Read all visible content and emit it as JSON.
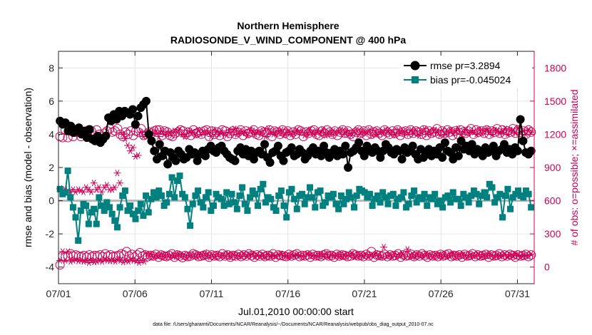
{
  "chart_data": {
    "type": "line",
    "title": "Northern Hemisphere",
    "subtitle": "RADIOSONDE_V_WIND_COMPONENT @ 400 hPa",
    "xlabel": "Jul.01,2010 00:00:00 start",
    "ylabel": "rmse and bias (model - observation)",
    "y2label": "# of obs: o=possible; ×=assimilated",
    "footnote": "data file: /Users/gharamti/Documents/NCAR/Reanalysis/~/Documents/NCAR/Reanalysis/webpub/obs_diag_output_2010-07.nc",
    "x_range": [
      0,
      31.1
    ],
    "y_range": [
      -5,
      9
    ],
    "y2_range": [
      -150,
      1950
    ],
    "x_ticks": [
      0,
      5,
      10,
      15,
      20,
      25,
      30
    ],
    "x_tick_labels": [
      "07/01",
      "07/06",
      "07/11",
      "07/16",
      "07/21",
      "07/26",
      "07/31"
    ],
    "y_ticks": [
      -4,
      -2,
      0,
      2,
      4,
      6,
      8
    ],
    "y_tick_labels": [
      "-4",
      "-2",
      "0",
      "2",
      "4",
      "6",
      "8"
    ],
    "y2_ticks": [
      0,
      300,
      600,
      900,
      1200,
      1500,
      1800
    ],
    "y2_tick_labels": [
      "0",
      "300",
      "600",
      "900",
      "1200",
      "1500",
      "1800"
    ],
    "colors": {
      "rmse": "#000000",
      "bias": "#00807f",
      "obs": "#cc0055",
      "zero_line": "#b8b8b8",
      "grid": "#e6e6e6"
    },
    "legend_position": "top-right",
    "series": [
      {
        "name": "rmse",
        "label": "rmse pr=3.2894",
        "axis": "left",
        "values": [
          4.8,
          4.6,
          4.7,
          4.2,
          4.5,
          4.1,
          4.3,
          4.4,
          4.0,
          4.2,
          3.8,
          4.3,
          3.7,
          3.6,
          3.9,
          3.5,
          3.7,
          3.9,
          5.0,
          4.8,
          5.2,
          4.9,
          5.4,
          5.1,
          5.4,
          5.3,
          5.2,
          5.5,
          4.6,
          5.1,
          5.6,
          5.8,
          6.0,
          4.0,
          3.6,
          3.0,
          2.5,
          3.4,
          2.7,
          3.0,
          2.2,
          2.9,
          2.6,
          2.4,
          3.0,
          2.8,
          2.5,
          2.6,
          3.1,
          2.8,
          2.9,
          2.4,
          2.8,
          3.0,
          2.7,
          3.1,
          3.3,
          3.0,
          2.9,
          3.2,
          3.3,
          3.0,
          2.8,
          2.6,
          2.5,
          2.4,
          3.0,
          3.2,
          2.8,
          3.1,
          2.7,
          3.0,
          2.5,
          2.9,
          3.0,
          2.8,
          3.4,
          2.6,
          2.3,
          2.9,
          3.0,
          3.3,
          2.7,
          2.4,
          2.9,
          3.0,
          3.2,
          2.7,
          2.8,
          3.1,
          2.9,
          2.5,
          2.7,
          3.0,
          3.2,
          2.8,
          3.0,
          2.7,
          3.3,
          2.9,
          2.6,
          2.9,
          3.1,
          2.7,
          3.0,
          2.8,
          3.3,
          2.0,
          2.9,
          3.0,
          3.2,
          3.5,
          3.0,
          2.7,
          3.3,
          3.0,
          2.9,
          3.2,
          3.0,
          2.6,
          3.0,
          3.4,
          3.2,
          2.9,
          2.8,
          3.1,
          3.0,
          2.5,
          3.2,
          2.9,
          3.0,
          3.3,
          2.8,
          2.5,
          3.1,
          2.6,
          2.8,
          3.1,
          2.7,
          3.0,
          2.8,
          3.2,
          2.6,
          3.5,
          3.0,
          2.9,
          2.5,
          3.2,
          2.7,
          3.6,
          3.1,
          3.3,
          3.0,
          3.4,
          2.8,
          3.1,
          3.0,
          2.7,
          3.2,
          2.9,
          3.0,
          3.3,
          2.7,
          3.0,
          3.1,
          3.4,
          2.9,
          3.1,
          2.8,
          3.2,
          3.0,
          4.9,
          3.6,
          2.9,
          2.8,
          3.0
        ]
      },
      {
        "name": "bias",
        "label": "bias pr=-0.045024",
        "axis": "left",
        "values": [
          0.7,
          0.4,
          0.5,
          1.8,
          0.2,
          -0.4,
          -1.0,
          -2.4,
          -0.6,
          -0.2,
          -0.3,
          -1.4,
          -0.7,
          -0.5,
          -1.4,
          0.2,
          -0.3,
          -0.6,
          -0.1,
          -0.4,
          -0.8,
          -1.2,
          -1.6,
          -0.4,
          0.3,
          0.6,
          -0.6,
          -0.3,
          -0.8,
          -1.1,
          -0.6,
          -0.2,
          -0.9,
          0.3,
          -0.7,
          0.1,
          0.5,
          0.2,
          0.6,
          0.3,
          -0.3,
          -0.1,
          0.4,
          1.4,
          0.2,
          1.2,
          1.5,
          0.4,
          0.2,
          -0.5,
          -1.5,
          -0.2,
          0.3,
          0.6,
          -0.1,
          -0.4,
          0.2,
          0.5,
          -0.6,
          -0.3,
          0.4,
          0.2,
          0.1,
          -0.3,
          0.5,
          -0.2,
          0.4,
          -0.1,
          -0.5,
          0.3,
          0.8,
          -0.2,
          -0.6,
          0.2,
          0.6,
          0.4,
          -0.3,
          0.7,
          1.0,
          -0.1,
          0.2,
          0.1,
          -0.4,
          -0.6,
          0.3,
          0.6,
          -0.3,
          -1.0,
          0.5,
          0.7,
          0.1,
          -0.5,
          0.3,
          0.4,
          -0.2,
          0.2,
          0.8,
          0.2,
          -0.4,
          0.5,
          0.6,
          -0.3,
          -0.1,
          0.3,
          0.2,
          0.4,
          -0.2,
          -0.5,
          0.3,
          -0.2,
          0.1,
          0.5,
          0.2,
          -0.4,
          0.3,
          0.7,
          0.6,
          0.5,
          0.2,
          0.4,
          -0.3,
          0.1,
          0.3,
          -0.1,
          0.5,
          0.2,
          -0.2,
          0.3,
          0.4,
          -0.3,
          0.1,
          0.2,
          0.5,
          -0.4,
          -0.2,
          0.3,
          0.6,
          -0.1,
          0.2,
          0.1,
          0.4,
          -0.3,
          0.2,
          0.1,
          0.4,
          -0.2,
          0.0,
          -0.4,
          0.2,
          0.3,
          -0.1,
          0.5,
          0.1,
          0.1,
          -0.3,
          0.4,
          0.2,
          -0.1,
          0.3,
          0.6,
          0.4,
          -0.2,
          0.3,
          0.5,
          0.2,
          1.0,
          0.8,
          -0.1,
          0.2,
          0.4,
          -1.0,
          0.3,
          0.7,
          -0.5,
          0.2,
          0.4,
          0.6,
          0.3,
          0.2,
          0.6,
          0.4,
          -0.4
        ]
      },
      {
        "name": "obs_possible_upper",
        "marker": "circle",
        "axis": "right",
        "values": [
          1180,
          1170,
          1240,
          1170,
          1230,
          1180,
          1220,
          1230,
          1180,
          1210,
          1230,
          1240,
          1230,
          1190,
          1240,
          1200,
          1180,
          1210,
          1230,
          1250,
          1220,
          1230,
          1250,
          1200,
          1180,
          1220,
          1200,
          1230,
          1190,
          1230,
          1220,
          1250,
          1190,
          1200,
          1220,
          1210,
          1230,
          1240,
          1240,
          1190,
          1230,
          1220,
          1190,
          1180,
          1210,
          1220,
          1240,
          1230,
          1200,
          1220,
          1190,
          1240,
          1210,
          1220,
          1200,
          1230,
          1240,
          1180,
          1230,
          1200,
          1220,
          1190,
          1240,
          1230,
          1180,
          1210,
          1230,
          1200,
          1220,
          1240,
          1190,
          1230,
          1210,
          1220,
          1240,
          1200,
          1190,
          1230,
          1220,
          1210,
          1240,
          1180,
          1230,
          1220,
          1200,
          1240,
          1210,
          1230,
          1190,
          1220,
          1200,
          1240,
          1230,
          1180,
          1220,
          1210,
          1230,
          1240,
          1200,
          1190,
          1230,
          1210,
          1240,
          1220,
          1200,
          1230,
          1190,
          1220,
          1240,
          1210,
          1230,
          1200,
          1180,
          1220,
          1240,
          1210,
          1230,
          1190,
          1240,
          1200,
          1220,
          1230,
          1210,
          1190,
          1240,
          1220,
          1200,
          1230,
          1210,
          1240,
          1190,
          1220,
          1230,
          1200,
          1240,
          1210,
          1230,
          1220,
          1200,
          1240,
          1190,
          1230,
          1210,
          1220,
          1250,
          1200,
          1230,
          1210,
          1240,
          1220,
          1190,
          1230,
          1200,
          1240,
          1220,
          1210,
          1230,
          1250,
          1200,
          1240,
          1220,
          1230,
          1210,
          1240,
          1200,
          1230,
          1220,
          1250,
          1210,
          1240,
          1200,
          1230,
          1220,
          1250,
          1210,
          1240,
          1220,
          1230,
          1200,
          1240,
          1220
        ]
      },
      {
        "name": "obs_assimilated_upper",
        "marker": "asterisk",
        "axis": "right",
        "values": [
          710,
          680,
          700,
          690,
          680,
          700,
          680,
          700,
          690,
          680,
          720,
          700,
          680,
          760,
          700,
          720,
          680,
          720,
          740,
          700,
          700,
          720,
          850,
          760,
          1200,
          1160,
          1100,
          1050,
          1080,
          1000,
          1010,
          1220,
          1180,
          1200,
          1220,
          1190,
          1210,
          1230,
          1180,
          1230,
          1200,
          1220,
          1210,
          1190,
          1230,
          1220,
          1240,
          1200,
          1180,
          1210,
          1230,
          1220,
          1190,
          1240,
          1200,
          1220,
          1230,
          1210,
          1180,
          1240,
          1220,
          1200,
          1230,
          1210,
          1190,
          1240,
          1220,
          1250,
          1200,
          1230,
          1210,
          1220,
          1190,
          1240,
          1230,
          1200,
          1220,
          1210,
          1230,
          1180,
          1250,
          1220,
          1200,
          1230,
          1210,
          1240,
          1190,
          1220,
          1230,
          1200,
          1210,
          1240,
          1220,
          1230,
          1190,
          1210,
          1240,
          1220,
          1200,
          1230,
          1210,
          1240,
          1190,
          1220,
          1200,
          1230,
          1210,
          1220,
          1240,
          1200,
          1230,
          1210,
          1190,
          1220,
          1240,
          1200,
          1230,
          1210,
          1220,
          1240,
          1190,
          1230,
          1200,
          1220,
          1210,
          1240,
          1230,
          1200,
          1220,
          1190,
          1240,
          1210,
          1230,
          1220,
          1200,
          1240,
          1210,
          1230,
          1190,
          1220,
          1250,
          1200,
          1230,
          1210,
          1240,
          1220,
          1190,
          1230,
          1200,
          1220,
          1240,
          1210,
          1230,
          1250,
          1200,
          1220,
          1240,
          1210,
          1230,
          1220,
          1200,
          1240,
          1210,
          1230,
          1250,
          1220,
          1200,
          1240,
          1230,
          1210,
          1220,
          1250,
          1200,
          1240,
          1230,
          1210,
          1260,
          1220,
          1230,
          1200,
          1240,
          1220
        ]
      },
      {
        "name": "obs_possible_lower",
        "marker": "circle",
        "axis": "right",
        "values": [
          20,
          100,
          90,
          100,
          120,
          100,
          110,
          100,
          95,
          105,
          90,
          110,
          95,
          105,
          100,
          110,
          95,
          120,
          100,
          110,
          95,
          100,
          105,
          120,
          110,
          140,
          100,
          115,
          90,
          110,
          130,
          100,
          110,
          95,
          105,
          100,
          115,
          90,
          110,
          100,
          95,
          105,
          120,
          90,
          110,
          100,
          85,
          105,
          95,
          100,
          120,
          110,
          95,
          100,
          105,
          115,
          90,
          110,
          100,
          105,
          95,
          120,
          100,
          110,
          90,
          105,
          100,
          115,
          95,
          110,
          100,
          120,
          105,
          90,
          110,
          100,
          115,
          95,
          105,
          100,
          120,
          90,
          110,
          105,
          100,
          95,
          115,
          100,
          110,
          120,
          95,
          105,
          100,
          110,
          90,
          115,
          100,
          105,
          95,
          110,
          120,
          100,
          105,
          90,
          115,
          100,
          110,
          105,
          95,
          100,
          120,
          110,
          100,
          105,
          95,
          115,
          100,
          140,
          90,
          110,
          105,
          100,
          115,
          95,
          110,
          100,
          105,
          120,
          90,
          110,
          100,
          105,
          115,
          95,
          110,
          100,
          120,
          105,
          90,
          110,
          100,
          105,
          95,
          115,
          100,
          110,
          120,
          95,
          105,
          100,
          110,
          90,
          115,
          100,
          105,
          120,
          95,
          110,
          100,
          105,
          115,
          90,
          110,
          100,
          105,
          120,
          95,
          110,
          100,
          115,
          105,
          90,
          110,
          100,
          105,
          115,
          95,
          110
        ]
      },
      {
        "name": "obs_assimilated_lower",
        "marker": "asterisk",
        "axis": "right",
        "values": [
          60,
          140,
          60,
          140,
          50,
          60,
          70,
          55,
          60,
          50,
          60,
          40,
          60,
          45,
          50,
          60,
          50,
          70,
          60,
          55,
          60,
          50,
          70,
          60,
          45,
          60,
          50,
          70,
          60,
          55,
          40,
          60,
          50,
          120,
          100,
          110,
          95,
          105,
          100,
          115,
          90,
          110,
          100,
          105,
          95,
          120,
          100,
          110,
          90,
          105,
          100,
          115,
          95,
          110,
          100,
          120,
          105,
          90,
          110,
          100,
          115,
          95,
          105,
          100,
          120,
          90,
          110,
          105,
          100,
          95,
          115,
          100,
          110,
          120,
          95,
          105,
          100,
          110,
          90,
          115,
          100,
          105,
          95,
          110,
          120,
          100,
          105,
          90,
          115,
          100,
          110,
          105,
          95,
          100,
          120,
          110,
          100,
          105,
          95,
          115,
          100,
          120,
          90,
          110,
          105,
          100,
          115,
          95,
          110,
          100,
          105,
          120,
          90,
          110,
          100,
          105,
          115,
          95,
          110,
          100,
          120,
          105,
          90,
          180,
          100,
          105,
          95,
          115,
          100,
          110,
          120,
          95,
          160,
          100,
          110,
          90,
          115,
          100,
          105,
          120,
          95,
          110,
          100,
          105,
          115,
          90,
          110,
          100,
          105,
          120,
          95,
          110,
          100,
          115,
          105,
          90,
          110,
          100,
          105,
          115,
          95,
          110,
          100,
          120,
          105,
          90,
          110,
          100,
          105,
          115,
          95,
          110,
          100,
          120,
          105,
          95,
          110,
          100,
          105,
          115
        ]
      }
    ]
  }
}
